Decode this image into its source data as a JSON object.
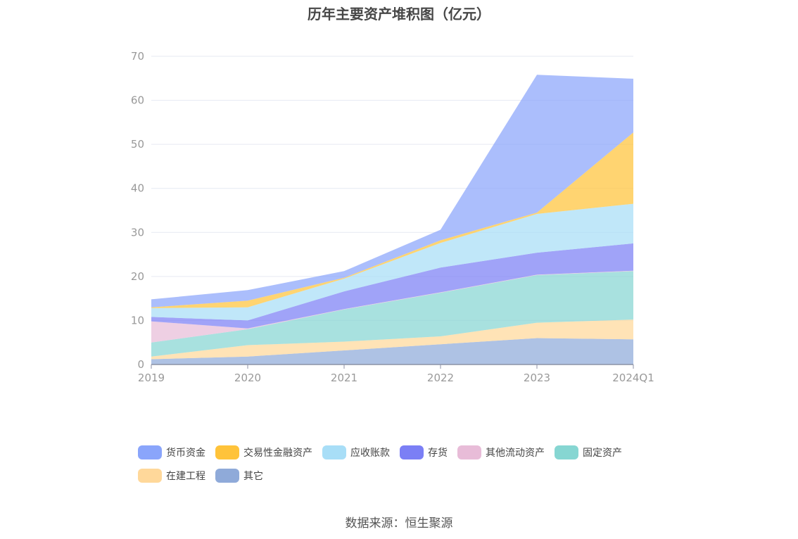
{
  "title": "历年主要资产堆积图（亿元）",
  "source": "数据来源：恒生聚源",
  "chart_data": {
    "type": "area",
    "stacked": true,
    "title": "历年主要资产堆积图（亿元）",
    "xlabel": "",
    "ylabel": "",
    "categories": [
      "2019",
      "2020",
      "2021",
      "2022",
      "2023",
      "2024Q1"
    ],
    "ylim": [
      0,
      70
    ],
    "yticks": [
      0,
      10,
      20,
      30,
      40,
      50,
      60,
      70
    ],
    "grid": true,
    "legend_position": "bottom",
    "series": [
      {
        "name": "其它",
        "color": "#8faad9",
        "values": [
          1.2,
          1.8,
          3.2,
          4.6,
          6.0,
          5.7
        ]
      },
      {
        "name": "在建工程",
        "color": "#ffd89a",
        "values": [
          0.6,
          2.6,
          2.0,
          1.8,
          3.5,
          4.5
        ]
      },
      {
        "name": "固定资产",
        "color": "#86d6d2",
        "values": [
          3.2,
          3.6,
          7.3,
          9.9,
          10.8,
          11.0
        ]
      },
      {
        "name": "其他流动资产",
        "color": "#e8bcd8",
        "values": [
          4.8,
          0.2,
          0.1,
          0.1,
          0.1,
          0.1
        ]
      },
      {
        "name": "存货",
        "color": "#7b7ff5",
        "values": [
          1.0,
          1.8,
          4.0,
          5.6,
          5.0,
          6.2
        ]
      },
      {
        "name": "应收账款",
        "color": "#a8def7",
        "values": [
          2.0,
          3.0,
          2.9,
          5.6,
          8.8,
          9.0
        ]
      },
      {
        "name": "交易性金融资产",
        "color": "#ffc33a",
        "values": [
          0.2,
          1.5,
          0.2,
          0.6,
          0.3,
          16.2
        ]
      },
      {
        "name": "货币资金",
        "color": "#8aa5fb",
        "values": [
          1.8,
          2.4,
          1.5,
          2.4,
          31.3,
          12.2
        ]
      }
    ]
  },
  "legend": {
    "row1": [
      {
        "name": "货币资金",
        "color": "#8aa5fb"
      },
      {
        "name": "交易性金融资产",
        "color": "#ffc33a"
      },
      {
        "name": "应收账款",
        "color": "#a8def7"
      },
      {
        "name": "存货",
        "color": "#7b7ff5"
      },
      {
        "name": "其他流动资产",
        "color": "#e8bcd8"
      },
      {
        "name": "固定资产",
        "color": "#86d6d2"
      }
    ],
    "row2": [
      {
        "name": "在建工程",
        "color": "#ffd89a"
      },
      {
        "name": "其它",
        "color": "#8faad9"
      }
    ]
  }
}
